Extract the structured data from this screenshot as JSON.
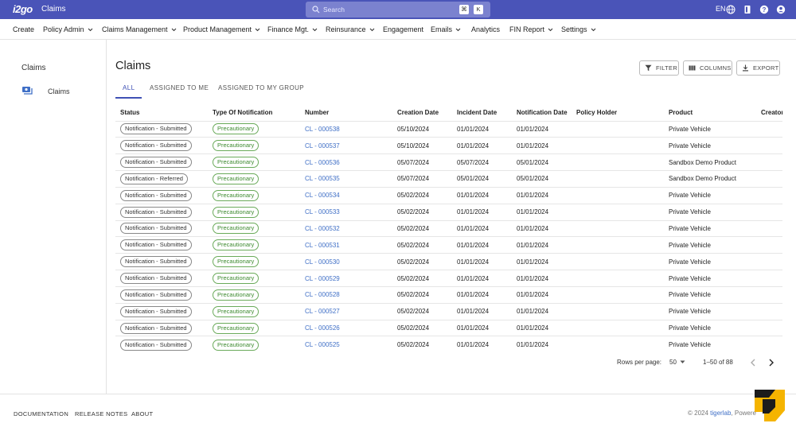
{
  "topbar": {
    "logo": "i2go",
    "app_title": "Claims",
    "search_placeholder": "Search",
    "shortcut_keys": [
      "⌘",
      "K"
    ],
    "language": "EN"
  },
  "menu": [
    {
      "label": "Create",
      "dropdown": false
    },
    {
      "label": "Policy Admin",
      "dropdown": true
    },
    {
      "label": "Claims Management",
      "dropdown": true
    },
    {
      "label": "Product Management",
      "dropdown": true
    },
    {
      "label": "Finance Mgt.",
      "dropdown": true
    },
    {
      "label": "Reinsurance",
      "dropdown": true
    },
    {
      "label": "Engagement",
      "dropdown": false
    },
    {
      "label": "Emails",
      "dropdown": true
    },
    {
      "label": "Analytics",
      "dropdown": false
    },
    {
      "label": "FIN Report",
      "dropdown": true
    },
    {
      "label": "Settings",
      "dropdown": true
    }
  ],
  "sidebar": {
    "title": "Claims",
    "items": [
      {
        "label": "Claims",
        "icon": "money-icon"
      }
    ]
  },
  "main": {
    "title": "Claims",
    "buttons": {
      "filter": "FILTER",
      "columns": "COLUMNS",
      "export": "EXPORT"
    },
    "tabs": [
      {
        "label": "ALL",
        "active": true
      },
      {
        "label": "ASSIGNED TO ME",
        "active": false
      },
      {
        "label": "ASSIGNED TO MY GROUP",
        "active": false
      }
    ],
    "columns": [
      "Status",
      "Type Of Notification",
      "Number",
      "Creation Date",
      "Incident Date",
      "Notification Date",
      "Policy Holder",
      "Product",
      "Creator"
    ],
    "rows": [
      {
        "status": "Notification - Submitted",
        "type": "Precautionary",
        "number": "CL - 000538",
        "creation": "05/10/2024",
        "incident": "01/01/2024",
        "notification": "01/01/2024",
        "holder": "",
        "product": "Private Vehicle",
        "creator": ""
      },
      {
        "status": "Notification - Submitted",
        "type": "Precautionary",
        "number": "CL - 000537",
        "creation": "05/10/2024",
        "incident": "01/01/2024",
        "notification": "01/01/2024",
        "holder": "",
        "product": "Private Vehicle",
        "creator": ""
      },
      {
        "status": "Notification - Submitted",
        "type": "Precautionary",
        "number": "CL - 000536",
        "creation": "05/07/2024",
        "incident": "05/07/2024",
        "notification": "05/01/2024",
        "holder": "",
        "product": "Sandbox Demo Product",
        "creator": ""
      },
      {
        "status": "Notification - Referred",
        "type": "Precautionary",
        "number": "CL - 000535",
        "creation": "05/07/2024",
        "incident": "05/01/2024",
        "notification": "05/01/2024",
        "holder": "",
        "product": "Sandbox Demo Product",
        "creator": ""
      },
      {
        "status": "Notification - Submitted",
        "type": "Precautionary",
        "number": "CL - 000534",
        "creation": "05/02/2024",
        "incident": "01/01/2024",
        "notification": "01/01/2024",
        "holder": "",
        "product": "Private Vehicle",
        "creator": ""
      },
      {
        "status": "Notification - Submitted",
        "type": "Precautionary",
        "number": "CL - 000533",
        "creation": "05/02/2024",
        "incident": "01/01/2024",
        "notification": "01/01/2024",
        "holder": "",
        "product": "Private Vehicle",
        "creator": ""
      },
      {
        "status": "Notification - Submitted",
        "type": "Precautionary",
        "number": "CL - 000532",
        "creation": "05/02/2024",
        "incident": "01/01/2024",
        "notification": "01/01/2024",
        "holder": "",
        "product": "Private Vehicle",
        "creator": ""
      },
      {
        "status": "Notification - Submitted",
        "type": "Precautionary",
        "number": "CL - 000531",
        "creation": "05/02/2024",
        "incident": "01/01/2024",
        "notification": "01/01/2024",
        "holder": "",
        "product": "Private Vehicle",
        "creator": ""
      },
      {
        "status": "Notification - Submitted",
        "type": "Precautionary",
        "number": "CL - 000530",
        "creation": "05/02/2024",
        "incident": "01/01/2024",
        "notification": "01/01/2024",
        "holder": "",
        "product": "Private Vehicle",
        "creator": ""
      },
      {
        "status": "Notification - Submitted",
        "type": "Precautionary",
        "number": "CL - 000529",
        "creation": "05/02/2024",
        "incident": "01/01/2024",
        "notification": "01/01/2024",
        "holder": "",
        "product": "Private Vehicle",
        "creator": ""
      },
      {
        "status": "Notification - Submitted",
        "type": "Precautionary",
        "number": "CL - 000528",
        "creation": "05/02/2024",
        "incident": "01/01/2024",
        "notification": "01/01/2024",
        "holder": "",
        "product": "Private Vehicle",
        "creator": ""
      },
      {
        "status": "Notification - Submitted",
        "type": "Precautionary",
        "number": "CL - 000527",
        "creation": "05/02/2024",
        "incident": "01/01/2024",
        "notification": "01/01/2024",
        "holder": "",
        "product": "Private Vehicle",
        "creator": ""
      },
      {
        "status": "Notification - Submitted",
        "type": "Precautionary",
        "number": "CL - 000526",
        "creation": "05/02/2024",
        "incident": "01/01/2024",
        "notification": "01/01/2024",
        "holder": "",
        "product": "Private Vehicle",
        "creator": ""
      },
      {
        "status": "Notification - Submitted",
        "type": "Precautionary",
        "number": "CL - 000525",
        "creation": "05/02/2024",
        "incident": "01/01/2024",
        "notification": "01/01/2024",
        "holder": "",
        "product": "Private Vehicle",
        "creator": ""
      }
    ],
    "pagination": {
      "rows_label": "Rows per page:",
      "rows_value": "50",
      "range": "1–50 of 88"
    }
  },
  "footer": {
    "links": [
      "DOCUMENTATION",
      "RELEASE NOTES",
      "ABOUT"
    ],
    "copyright_prefix": "© 2024",
    "copyright_brand": "tigerlab",
    "copyright_suffix": ", Powere"
  },
  "colors": {
    "topbar": "#4a54b8",
    "accent": "#3f51b5",
    "link": "#3f6fc6",
    "chip_green": "#3d8a2f"
  }
}
